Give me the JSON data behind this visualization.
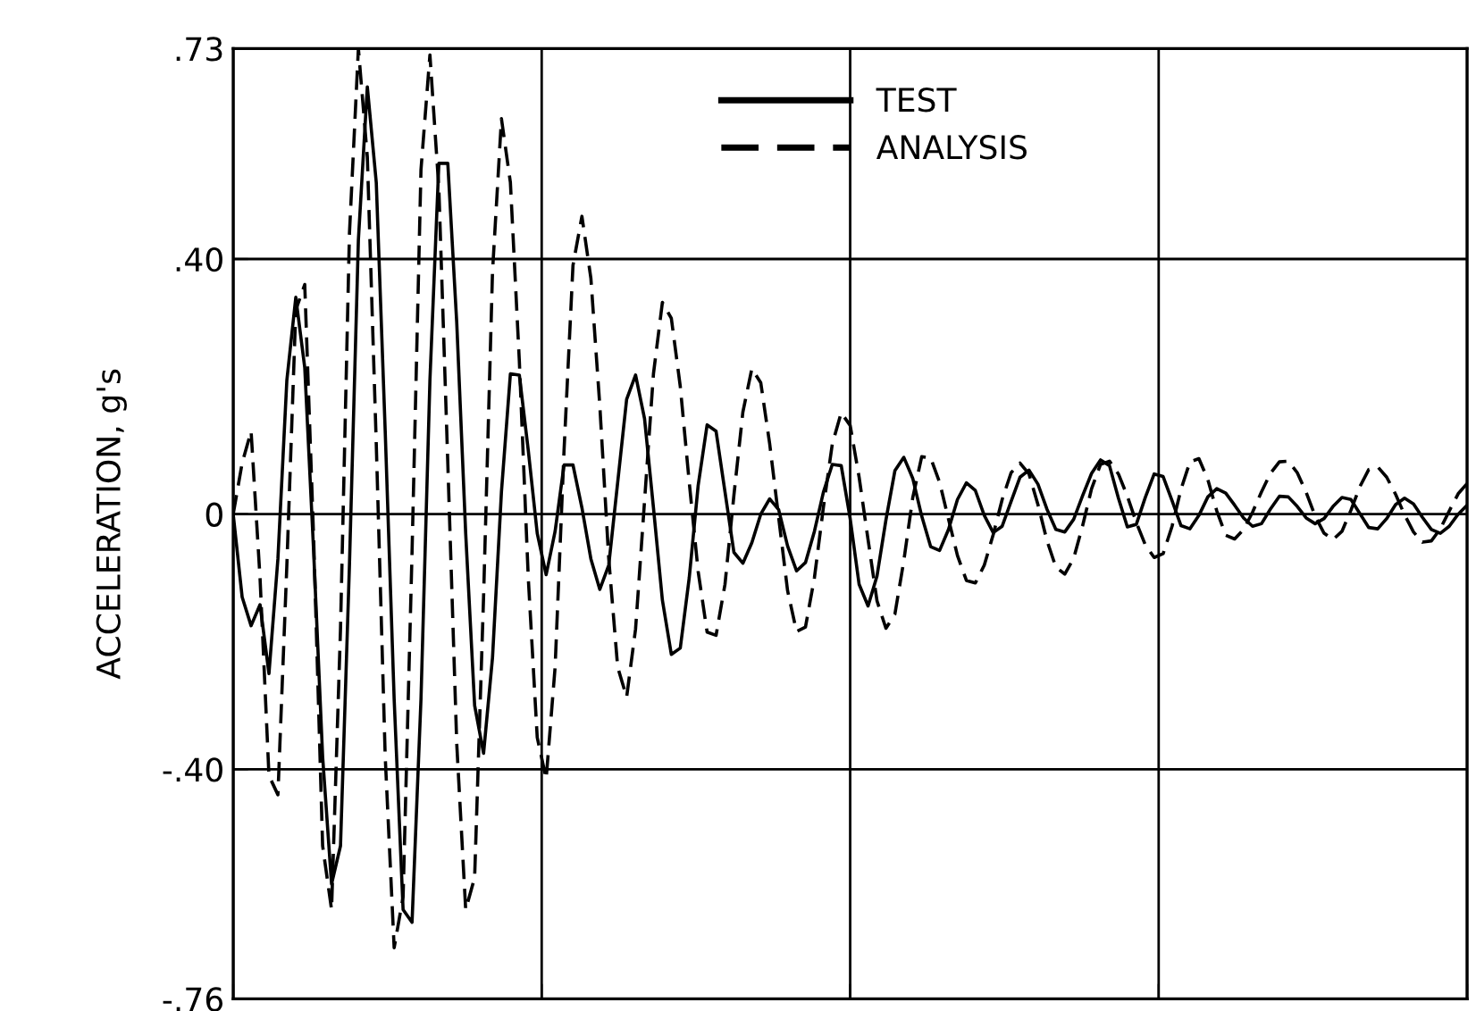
{
  "chart_data": {
    "type": "line",
    "ylabel": "ACCELERATION, g's",
    "categories": [
      null,
      null,
      null,
      null,
      null,
      null,
      null,
      null,
      null,
      null,
      null,
      null,
      null,
      null,
      null,
      null,
      null,
      null,
      null,
      null,
      null,
      null,
      null,
      null,
      null,
      null,
      null,
      null,
      null,
      null,
      null,
      null,
      null,
      null,
      null,
      null,
      null,
      null,
      null,
      null,
      null,
      null,
      null,
      null,
      null,
      null,
      null,
      null,
      null,
      null,
      null,
      null,
      null,
      null,
      null,
      null,
      null,
      null,
      null,
      null,
      null,
      null,
      null,
      null,
      null,
      null,
      null,
      null,
      null,
      null,
      null,
      null,
      null,
      null,
      null,
      null,
      null,
      null,
      null,
      null,
      null,
      null,
      null,
      null,
      null,
      null,
      null,
      null,
      null,
      null,
      null,
      null,
      null,
      null,
      null,
      null,
      null,
      null,
      null,
      null,
      null,
      null,
      null,
      null,
      null,
      null,
      null,
      null,
      null,
      null,
      null,
      null,
      null,
      null,
      null,
      null,
      null,
      null,
      null,
      null,
      null,
      null,
      null,
      null,
      null,
      null,
      null,
      null,
      null,
      null,
      null,
      null,
      null,
      null,
      null,
      null,
      null,
      null,
      null
    ],
    "series": [
      {
        "name": "TEST",
        "color": "#000000",
        "line_style": "solid",
        "values": [
          0,
          -0.13,
          -0.175,
          -0.142,
          -0.25,
          -0.07,
          0.21,
          0.34,
          0.23,
          -0.06,
          -0.38,
          -0.58,
          -0.52,
          -0.08,
          0.43,
          0.67,
          0.52,
          0.13,
          -0.29,
          -0.62,
          -0.64,
          -0.29,
          0.21,
          0.55,
          0.55,
          0.3,
          -0.03,
          -0.3,
          -0.375,
          -0.225,
          0.035,
          0.22,
          0.218,
          0.1,
          -0.03,
          -0.095,
          -0.027,
          0.077,
          0.077,
          0.01,
          -0.07,
          -0.118,
          -0.08,
          0.05,
          0.18,
          0.218,
          0.15,
          0.01,
          -0.135,
          -0.22,
          -0.21,
          -0.1,
          0.045,
          0.14,
          0.13,
          0.035,
          -0.06,
          -0.077,
          -0.045,
          0.0,
          0.024,
          0.007,
          -0.05,
          -0.089,
          -0.076,
          -0.027,
          0.034,
          0.078,
          0.076,
          -0.007,
          -0.11,
          -0.144,
          -0.097,
          -0.009,
          0.068,
          0.089,
          0.056,
          -0.003,
          -0.051,
          -0.057,
          -0.024,
          0.023,
          0.049,
          0.037,
          -0.002,
          -0.029,
          -0.019,
          0.02,
          0.058,
          0.069,
          0.047,
          0.008,
          -0.024,
          -0.028,
          -0.008,
          0.029,
          0.064,
          0.085,
          0.076,
          0.025,
          -0.02,
          -0.016,
          0.026,
          0.063,
          0.059,
          0.021,
          -0.018,
          -0.023,
          -0.002,
          0.027,
          0.04,
          0.033,
          0.014,
          -0.006,
          -0.019,
          -0.015,
          0.008,
          0.028,
          0.027,
          0.012,
          -0.006,
          -0.015,
          -0.007,
          0.012,
          0.026,
          0.023,
          0.001,
          -0.021,
          -0.023,
          -0.007,
          0.015,
          0.025,
          0.016,
          -0.005,
          -0.024,
          -0.03,
          -0.019,
          0.0,
          0.014
        ]
      },
      {
        "name": "ANALYSIS",
        "color": "#000000",
        "line_style": "dashed",
        "values": [
          0,
          0.08,
          0.13,
          -0.1,
          -0.41,
          -0.44,
          -0.08,
          0.32,
          0.36,
          -0.04,
          -0.52,
          -0.62,
          -0.18,
          0.44,
          0.73,
          0.56,
          0.11,
          -0.38,
          -0.68,
          -0.6,
          -0.06,
          0.54,
          0.72,
          0.51,
          0.08,
          -0.36,
          -0.62,
          -0.57,
          -0.13,
          0.38,
          0.62,
          0.52,
          0.24,
          -0.1,
          -0.35,
          -0.415,
          -0.24,
          0.1,
          0.39,
          0.467,
          0.37,
          0.17,
          -0.07,
          -0.24,
          -0.287,
          -0.18,
          0.02,
          0.22,
          0.332,
          0.307,
          0.2,
          0.05,
          -0.09,
          -0.185,
          -0.19,
          -0.11,
          0.03,
          0.16,
          0.228,
          0.206,
          0.11,
          -0.005,
          -0.12,
          -0.184,
          -0.177,
          -0.1,
          0.01,
          0.11,
          0.159,
          0.139,
          0.058,
          -0.04,
          -0.136,
          -0.179,
          -0.157,
          -0.073,
          0.026,
          0.09,
          0.088,
          0.05,
          -0.008,
          -0.065,
          -0.104,
          -0.108,
          -0.08,
          -0.032,
          0.023,
          0.065,
          0.08,
          0.063,
          0.015,
          -0.041,
          -0.083,
          -0.094,
          -0.069,
          -0.018,
          0.04,
          0.078,
          0.083,
          0.063,
          0.028,
          -0.013,
          -0.048,
          -0.068,
          -0.062,
          -0.019,
          0.039,
          0.082,
          0.087,
          0.054,
          0.005,
          -0.033,
          -0.039,
          -0.024,
          0.003,
          0.035,
          0.064,
          0.082,
          0.083,
          0.065,
          0.034,
          -0.003,
          -0.03,
          -0.04,
          -0.027,
          0.006,
          0.043,
          0.07,
          0.074,
          0.058,
          0.031,
          -0.001,
          -0.028,
          -0.044,
          -0.042,
          -0.023,
          0.005,
          0.032,
          0.048
        ]
      }
    ],
    "ylim": [
      -0.76,
      0.73
    ],
    "yticks": [
      {
        "value": 0.73,
        "label": ".73"
      },
      {
        "value": 0.4,
        "label": ".40"
      },
      0,
      {
        "value": -0.4,
        "label": "-.40"
      },
      {
        "value": -0.76,
        "label": "-.76"
      }
    ],
    "grid": true,
    "legend": "top",
    "tick_labels": "y"
  }
}
